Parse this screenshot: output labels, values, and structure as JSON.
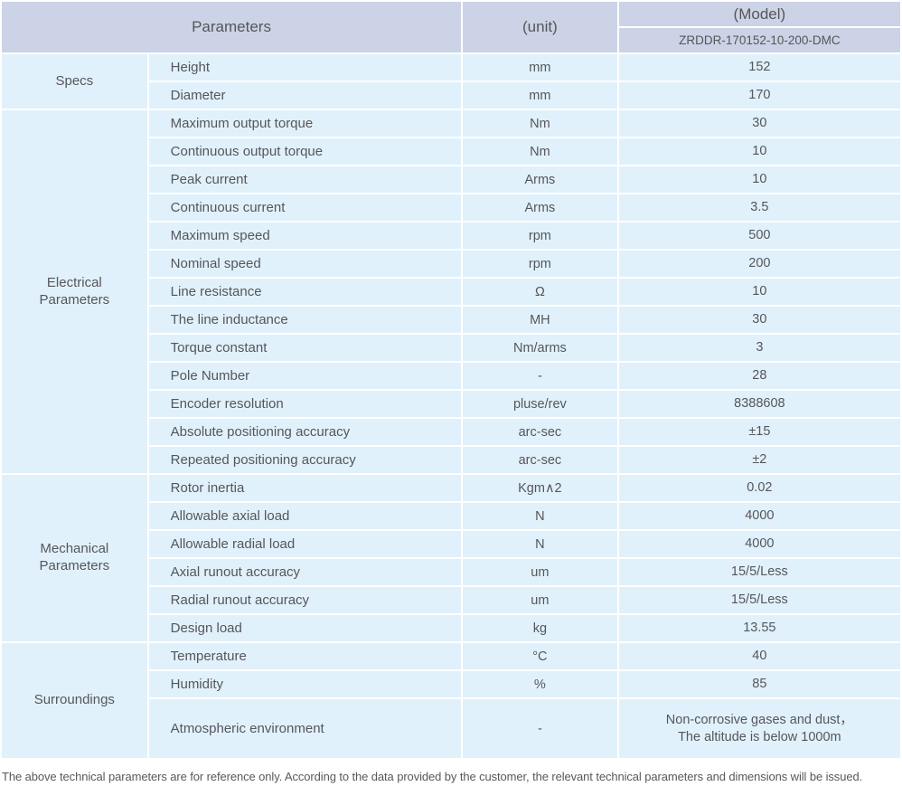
{
  "colors": {
    "header_bg": "#ccd3e6",
    "row_bg": "#e1f1fb",
    "text": "#55565a",
    "footnote_text": "#57585c"
  },
  "header": {
    "parameters": "Parameters",
    "unit": "(unit)",
    "model": "(Model)",
    "model_code": "ZRDDR-170152-10-200-DMC"
  },
  "sections": [
    {
      "category": "Specs",
      "rows": [
        {
          "param": "Height",
          "unit": "mm",
          "value": "152"
        },
        {
          "param": "Diameter",
          "unit": "mm",
          "value": "170"
        }
      ]
    },
    {
      "category": "Electrical\nParameters",
      "rows": [
        {
          "param": "Maximum output torque",
          "unit": "Nm",
          "value": "30"
        },
        {
          "param": "Continuous output torque",
          "unit": "Nm",
          "value": "10"
        },
        {
          "param": "Peak current",
          "unit": "Arms",
          "value": "10"
        },
        {
          "param": "Continuous current",
          "unit": "Arms",
          "value": "3.5"
        },
        {
          "param": "Maximum speed",
          "unit": "rpm",
          "value": "500"
        },
        {
          "param": "Nominal speed",
          "unit": "rpm",
          "value": "200"
        },
        {
          "param": "Line resistance",
          "unit": "Ω",
          "value": "10"
        },
        {
          "param": "The line inductance",
          "unit": "MH",
          "value": "30"
        },
        {
          "param": "Torque constant",
          "unit": "Nm/arms",
          "value": "3"
        },
        {
          "param": "Pole Number",
          "unit": "-",
          "value": "28"
        },
        {
          "param": "Encoder resolution",
          "unit": "pluse/rev",
          "value": "8388608"
        },
        {
          "param": "Absolute positioning accuracy",
          "unit": "arc-sec",
          "value": "±15"
        },
        {
          "param": "Repeated positioning accuracy",
          "unit": "arc-sec",
          "value": "±2"
        }
      ]
    },
    {
      "category": "Mechanical\nParameters",
      "rows": [
        {
          "param": "Rotor inertia",
          "unit": "Kgm∧2",
          "value": "0.02"
        },
        {
          "param": "Allowable axial load",
          "unit": "N",
          "value": "4000"
        },
        {
          "param": "Allowable radial load",
          "unit": "N",
          "value": "4000"
        },
        {
          "param": "Axial runout accuracy",
          "unit": "um",
          "value": "15/5/Less"
        },
        {
          "param": "Radial runout accuracy",
          "unit": "um",
          "value": "15/5/Less"
        },
        {
          "param": "Design load",
          "unit": "kg",
          "value": "13.55"
        }
      ]
    },
    {
      "category": "Surroundings",
      "rows": [
        {
          "param": "Temperature",
          "unit": "°C",
          "value": "40"
        },
        {
          "param": "Humidity",
          "unit": "%",
          "value": "85"
        },
        {
          "param": "Atmospheric environment",
          "unit": "-",
          "value": "Non-corrosive gases and dust，\nThe altitude is below 1000m",
          "tall": true
        }
      ]
    }
  ],
  "footnote": "The above technical parameters are for reference only. According to the data provided by the customer, the relevant technical parameters and dimensions will be issued."
}
